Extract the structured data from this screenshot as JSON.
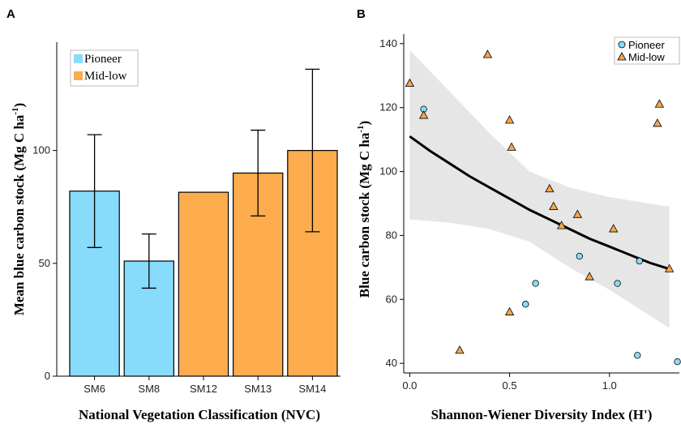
{
  "chart_data": [
    {
      "panel": "A",
      "type": "bar",
      "xlabel": "National Vegetation Classification (NVC)",
      "ylabel": "Mean blue carbon  stock  (Mg C ha-1)",
      "ylim": [
        0,
        148
      ],
      "yticks": [
        0,
        50,
        100
      ],
      "categories": [
        "SM6",
        "SM8",
        "SM12",
        "SM13",
        "SM14"
      ],
      "values": [
        82,
        51,
        81.5,
        90,
        100
      ],
      "error_low": [
        57,
        39,
        81.5,
        71,
        64
      ],
      "error_high": [
        107,
        63,
        81.5,
        109,
        136
      ],
      "groups": [
        "Pioneer",
        "Pioneer",
        "Mid-low",
        "Mid-low",
        "Mid-low"
      ],
      "legend": [
        "Pioneer",
        "Mid-low"
      ],
      "legend_position": "top-left",
      "colors": {
        "Pioneer": "#87dcfc",
        "Mid-low": "#fcac4c"
      }
    },
    {
      "panel": "B",
      "type": "scatter",
      "xlabel": "Shannon-Wiener Diversity Index (H')",
      "ylabel": "Blue carbon  stock  (Mg C ha-1)",
      "xlim": [
        -0.03,
        1.35
      ],
      "ylim": [
        37,
        143
      ],
      "xticks": [
        0.0,
        0.5,
        1.0
      ],
      "xtick_labels": [
        "0.0",
        "0.5",
        "1.0"
      ],
      "yticks": [
        40,
        60,
        80,
        100,
        120,
        140
      ],
      "legend": [
        "Pioneer",
        "Mid-low"
      ],
      "legend_position": "top-right",
      "colors": {
        "Pioneer": "#87dcfc",
        "Mid-low": "#f5a64a",
        "band": "#e6e6e6",
        "fit": "#000000"
      },
      "series": [
        {
          "name": "Pioneer",
          "marker": "circle",
          "x": [
            0.07,
            0.58,
            0.63,
            0.85,
            1.04,
            1.14,
            1.15,
            1.34
          ],
          "y": [
            119.5,
            58.5,
            65,
            73.5,
            65,
            42.5,
            72,
            40.5
          ]
        },
        {
          "name": "Mid-low",
          "marker": "triangle",
          "x": [
            0.0,
            0.07,
            0.25,
            0.39,
            0.5,
            0.5,
            0.51,
            0.7,
            0.72,
            0.76,
            0.84,
            0.9,
            1.02,
            1.24,
            1.25,
            1.3
          ],
          "y": [
            127.5,
            117.5,
            44,
            136.5,
            56,
            116,
            107.5,
            94.5,
            89,
            83,
            86.5,
            67,
            82,
            115,
            121,
            69.5
          ]
        }
      ],
      "fit_line": {
        "x": [
          0.0,
          0.1,
          0.2,
          0.3,
          0.4,
          0.5,
          0.6,
          0.7,
          0.8,
          0.9,
          1.0,
          1.1,
          1.2,
          1.3
        ],
        "y": [
          111,
          106.5,
          102.5,
          98.5,
          95,
          91.5,
          88,
          85,
          82,
          79,
          76.5,
          74,
          71.5,
          69.5
        ]
      },
      "confidence_band": {
        "x": [
          0.0,
          0.2,
          0.4,
          0.6,
          0.8,
          1.0,
          1.2,
          1.3
        ],
        "upper": [
          138,
          125,
          112,
          100,
          95,
          92,
          90,
          89
        ],
        "lower": [
          85,
          84,
          82,
          78,
          70,
          63,
          55,
          51
        ]
      }
    }
  ]
}
